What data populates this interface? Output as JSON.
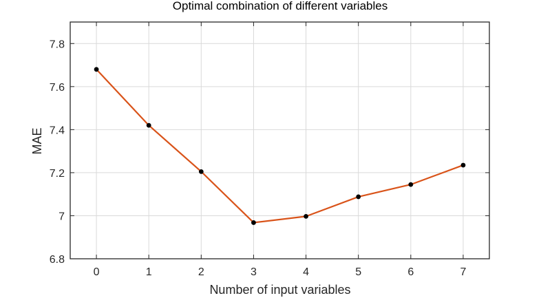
{
  "chart_data": {
    "type": "line",
    "title": "Optimal combination of different variables",
    "xlabel": "Number of input variables",
    "ylabel": "MAE",
    "x": [
      0,
      1,
      2,
      3,
      4,
      5,
      6,
      7
    ],
    "xlim": [
      -0.5,
      7.5
    ],
    "ylim": [
      6.8,
      7.9
    ],
    "x_ticks": [
      0,
      1,
      2,
      3,
      4,
      5,
      6,
      7
    ],
    "x_tick_labels": [
      "0",
      "1",
      "2",
      "3",
      "4",
      "5",
      "6",
      "7"
    ],
    "y_ticks": [
      6.8,
      7.0,
      7.2,
      7.4,
      7.6,
      7.8
    ],
    "y_tick_labels": [
      "6.8",
      "7",
      "7.2",
      "7.4",
      "7.6",
      "7.8"
    ],
    "grid": true,
    "series": [
      {
        "values": [
          7.68,
          7.42,
          7.205,
          6.968,
          6.997,
          7.088,
          7.145,
          7.235
        ],
        "line_color": "#d95319",
        "marker_color": "#000000"
      }
    ],
    "colors": {
      "grid": "#d9d9d9",
      "axes": "#262626"
    }
  }
}
